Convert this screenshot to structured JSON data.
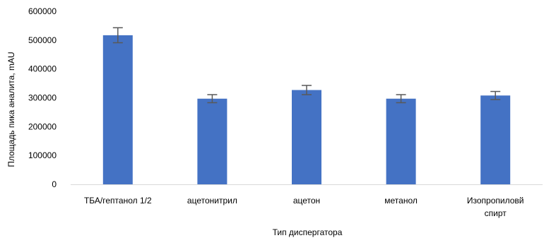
{
  "chart_data": {
    "type": "bar",
    "categories": [
      [
        "ТБА/гептанол 1/2"
      ],
      [
        "ацетонитрил"
      ],
      [
        "ацетон"
      ],
      [
        "метанол"
      ],
      [
        "Изопропиловй",
        "спирт"
      ]
    ],
    "values": [
      517000,
      297000,
      327000,
      297000,
      308000
    ],
    "errors": [
      26000,
      14000,
      16000,
      14000,
      14000
    ],
    "xlabel": "Тип диспергатора",
    "ylabel": "Площадь пика аналита, mAU",
    "ylim": [
      0,
      600000
    ],
    "yticks": [
      "0",
      "100000",
      "200000",
      "300000",
      "400000",
      "500000",
      "600000"
    ],
    "grid": false,
    "legend": "none",
    "colors": {
      "bar": "#4472C4",
      "error_bar": "#595959",
      "axis": "#D9D9D9"
    }
  }
}
